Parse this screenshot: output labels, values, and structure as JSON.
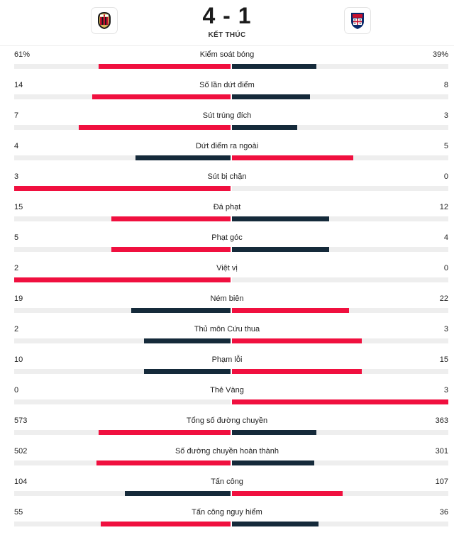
{
  "match": {
    "score": "4 - 1",
    "status": "KẾT THÚC",
    "home_crest_icon": "ac-milan-crest-icon",
    "away_crest_icon": "cagliari-crest-icon"
  },
  "colors": {
    "leading": "#f0103f",
    "trailing": "#152a3a",
    "track": "#eeeeee"
  },
  "stats": [
    {
      "label": "Kiểm soát bóng",
      "home": "61%",
      "away": "39%",
      "home_fraction": 0.61,
      "away_fraction": 0.39
    },
    {
      "label": "Số lần dứt điểm",
      "home": "14",
      "away": "8",
      "home_fraction": 0.64,
      "away_fraction": 0.36
    },
    {
      "label": "Sút trúng đích",
      "home": "7",
      "away": "3",
      "home_fraction": 0.7,
      "away_fraction": 0.3
    },
    {
      "label": "Dứt điểm ra ngoài",
      "home": "4",
      "away": "5",
      "home_fraction": 0.44,
      "away_fraction": 0.56
    },
    {
      "label": "Sút bị chặn",
      "home": "3",
      "away": "0",
      "home_fraction": 1.0,
      "away_fraction": 0.0
    },
    {
      "label": "Đá phạt",
      "home": "15",
      "away": "12",
      "home_fraction": 0.55,
      "away_fraction": 0.45
    },
    {
      "label": "Phạt góc",
      "home": "5",
      "away": "4",
      "home_fraction": 0.55,
      "away_fraction": 0.45
    },
    {
      "label": "Việt vị",
      "home": "2",
      "away": "0",
      "home_fraction": 1.0,
      "away_fraction": 0.0
    },
    {
      "label": "Ném biên",
      "home": "19",
      "away": "22",
      "home_fraction": 0.46,
      "away_fraction": 0.54
    },
    {
      "label": "Thủ môn Cứu thua",
      "home": "2",
      "away": "3",
      "home_fraction": 0.4,
      "away_fraction": 0.6
    },
    {
      "label": "Phạm lỗi",
      "home": "10",
      "away": "15",
      "home_fraction": 0.4,
      "away_fraction": 0.6
    },
    {
      "label": "Thẻ Vàng",
      "home": "0",
      "away": "3",
      "home_fraction": 0.0,
      "away_fraction": 1.0
    },
    {
      "label": "Tổng số đường chuyền",
      "home": "573",
      "away": "363",
      "home_fraction": 0.61,
      "away_fraction": 0.39
    },
    {
      "label": "Số đường chuyền hoàn thành",
      "home": "502",
      "away": "301",
      "home_fraction": 0.62,
      "away_fraction": 0.38
    },
    {
      "label": "Tấn công",
      "home": "104",
      "away": "107",
      "home_fraction": 0.49,
      "away_fraction": 0.51
    },
    {
      "label": "Tấn công nguy hiểm",
      "home": "55",
      "away": "36",
      "home_fraction": 0.6,
      "away_fraction": 0.4
    }
  ]
}
